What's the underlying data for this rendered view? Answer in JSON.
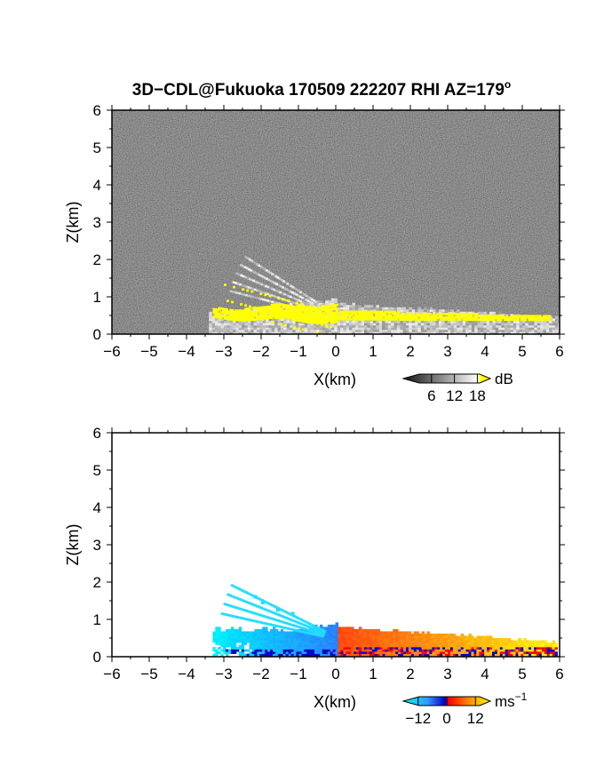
{
  "figure": {
    "title": "3D−CDL@Fukuoka 170509 222207 RHI AZ=179",
    "title_superscript": "o"
  },
  "chart_data": [
    {
      "type": "heatmap",
      "variable": "reflectivity",
      "xlabel": "X(km)",
      "ylabel": "Z(km)",
      "xlim": [
        -6,
        6
      ],
      "ylim": [
        0,
        6
      ],
      "xticks": [
        "−6",
        "−5",
        "−4",
        "−3",
        "−2",
        "−1",
        "0",
        "1",
        "2",
        "3",
        "4",
        "5",
        "6"
      ],
      "yticks": [
        "0",
        "1",
        "2",
        "3",
        "4",
        "5",
        "6"
      ],
      "colorbar": {
        "unit": "dB",
        "ticks": [
          "6",
          "12",
          "18"
        ],
        "tick_values": [
          6,
          12,
          18
        ],
        "range": [
          0,
          20
        ],
        "colormap": "grayscale, yellow above 18",
        "colors": [
          "#111111",
          "#ffffff",
          "#ffff00"
        ]
      },
      "echo_region": {
        "description_values": {
          "x_range_km": [
            -3.4,
            6
          ],
          "z_range_km": [
            0,
            1.5
          ]
        },
        "high_value_band": {
          "x_range_km": [
            -3.3,
            5.7
          ],
          "z_range_km": [
            0.3,
            0.8
          ]
        }
      }
    },
    {
      "type": "heatmap",
      "variable": "doppler_velocity",
      "xlabel": "X(km)",
      "ylabel": "Z(km)",
      "xlim": [
        -6,
        6
      ],
      "ylim": [
        0,
        6
      ],
      "xticks": [
        "−6",
        "−5",
        "−4",
        "−3",
        "−2",
        "−1",
        "0",
        "1",
        "2",
        "3",
        "4",
        "5",
        "6"
      ],
      "yticks": [
        "0",
        "1",
        "2",
        "3",
        "4",
        "5",
        "6"
      ],
      "colorbar": {
        "unit": "ms",
        "unit_superscript": "−1",
        "ticks": [
          "−12",
          "0",
          "12"
        ],
        "tick_values": [
          -12,
          0,
          12
        ],
        "range": [
          -16,
          16
        ],
        "colors": [
          "#00ffff",
          "#3399ff",
          "#0000cc",
          "#ff0000",
          "#ff8800",
          "#ffff00"
        ]
      },
      "echo_region": {
        "negative_side_x_km": [
          -3.4,
          0
        ],
        "positive_side_x_km": [
          0,
          5.9
        ],
        "z_range_km": [
          0,
          1.6
        ]
      }
    }
  ]
}
